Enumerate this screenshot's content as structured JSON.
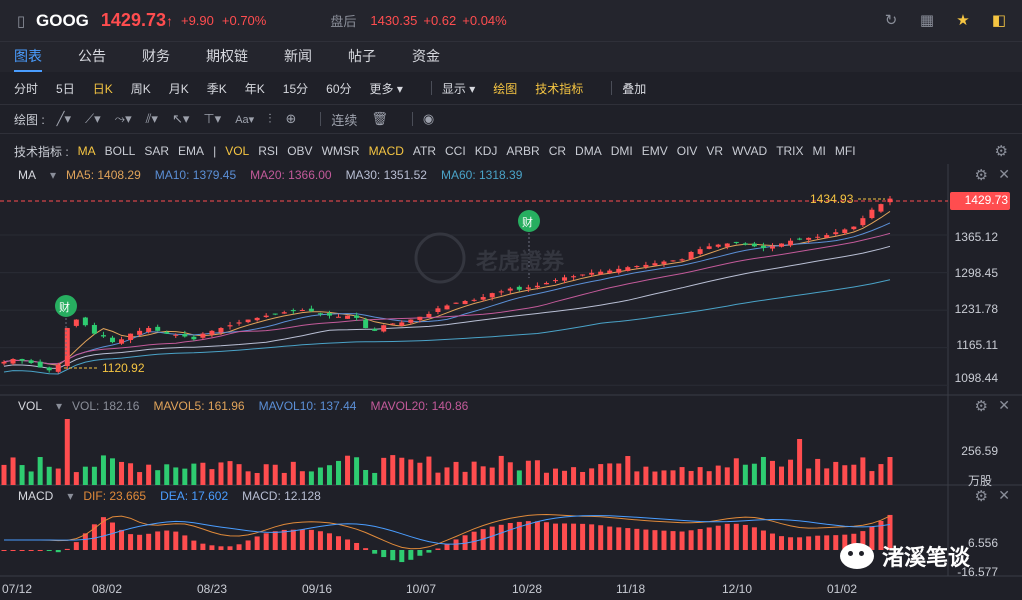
{
  "title": {
    "symbol": "GOOG",
    "price": "1429.73",
    "arrow": "↑",
    "change": "+9.90",
    "change_pct": "+0.70%",
    "after_hours_label": "盘后",
    "after_hours_price": "1430.35",
    "after_hours_change": "+0.62",
    "after_hours_pct": "+0.04%"
  },
  "tabs": [
    "图表",
    "公告",
    "财务",
    "期权链",
    "新闻",
    "帖子",
    "资金"
  ],
  "periods": [
    "分时",
    "5日",
    "日K",
    "周K",
    "月K",
    "季K",
    "年K",
    "15分",
    "60分",
    "更多 ▾"
  ],
  "period_options": [
    "显示 ▾",
    "绘图",
    "技术指标",
    "叠加"
  ],
  "draw": {
    "label": "绘图 :",
    "continuous": "连续"
  },
  "indicators": {
    "label": "技术指标 :",
    "items": [
      "MA",
      "BOLL",
      "SAR",
      "EMA",
      "|",
      "VOL",
      "RSI",
      "OBV",
      "WMSR",
      "MACD",
      "ATR",
      "CCI",
      "KDJ",
      "ARBR",
      "CR",
      "DMA",
      "DMI",
      "EMV",
      "OIV",
      "VR",
      "WVAD",
      "TRIX",
      "MI",
      "MFI"
    ]
  },
  "ma_legend": {
    "name": "MA",
    "ma5": "MA5: 1408.29",
    "ma10": "MA10: 1379.45",
    "ma20": "MA20: 1366.00",
    "ma30": "MA30: 1351.52",
    "ma60": "MA60: 1318.39"
  },
  "vol_legend": {
    "name": "VOL",
    "vol": "VOL: 182.16",
    "mavol5": "MAVOL5: 161.96",
    "mavol10": "MAVOL10: 137.44",
    "mavol20": "MAVOL20: 140.86"
  },
  "macd_legend": {
    "name": "MACD",
    "dif": "DIF: 23.665",
    "dea": "DEA: 17.602",
    "macd": "MACD: 12.128"
  },
  "price_axis": [
    "1365.12",
    "1298.45",
    "1231.78",
    "1165.11",
    "1098.44"
  ],
  "current_price_tag": "1429.73",
  "high_label": "1434.93",
  "low_label": "1120.92",
  "event_badge": "财",
  "vol_axis": {
    "value": "256.59",
    "unit": "万股"
  },
  "macd_axis": [
    "6.556",
    "-16.577"
  ],
  "dates": [
    "07/12",
    "08/02",
    "08/23",
    "09/16",
    "10/07",
    "10/28",
    "11/18",
    "12/10",
    "01/02"
  ],
  "watermark": "渚溪笔谈",
  "logo_text": "老虎證券",
  "colors": {
    "up": "#ff4d4f",
    "down": "#2ecc71",
    "accent": "#4a9dff",
    "highlight": "#f5c542"
  },
  "chart_data": {
    "type": "candlestick",
    "price_range": [
      1098.44,
      1434.93
    ],
    "close_series_approx": [
      1140,
      1145,
      1142,
      1138,
      1130,
      1125,
      1135,
      1200,
      1215,
      1205,
      1190,
      1185,
      1175,
      1180,
      1190,
      1195,
      1200,
      1195,
      1190,
      1188,
      1185,
      1180,
      1190,
      1195,
      1200,
      1205,
      1210,
      1215,
      1218,
      1222,
      1225,
      1228,
      1230,
      1232,
      1230,
      1225,
      1222,
      1220,
      1222,
      1218,
      1200,
      1195,
      1205,
      1208,
      1210,
      1215,
      1220,
      1225,
      1235,
      1240,
      1245,
      1248,
      1250,
      1255,
      1262,
      1265,
      1270,
      1268,
      1272,
      1275,
      1280,
      1285,
      1290,
      1292,
      1295,
      1298,
      1300,
      1302,
      1305,
      1308,
      1310,
      1312,
      1315,
      1318,
      1320,
      1322,
      1335,
      1340,
      1345,
      1348,
      1350,
      1352,
      1348,
      1345,
      1342,
      1345,
      1350,
      1355,
      1358,
      1360,
      1362,
      1365,
      1370,
      1375,
      1380,
      1395,
      1410,
      1420,
      1429.73
    ]
  }
}
